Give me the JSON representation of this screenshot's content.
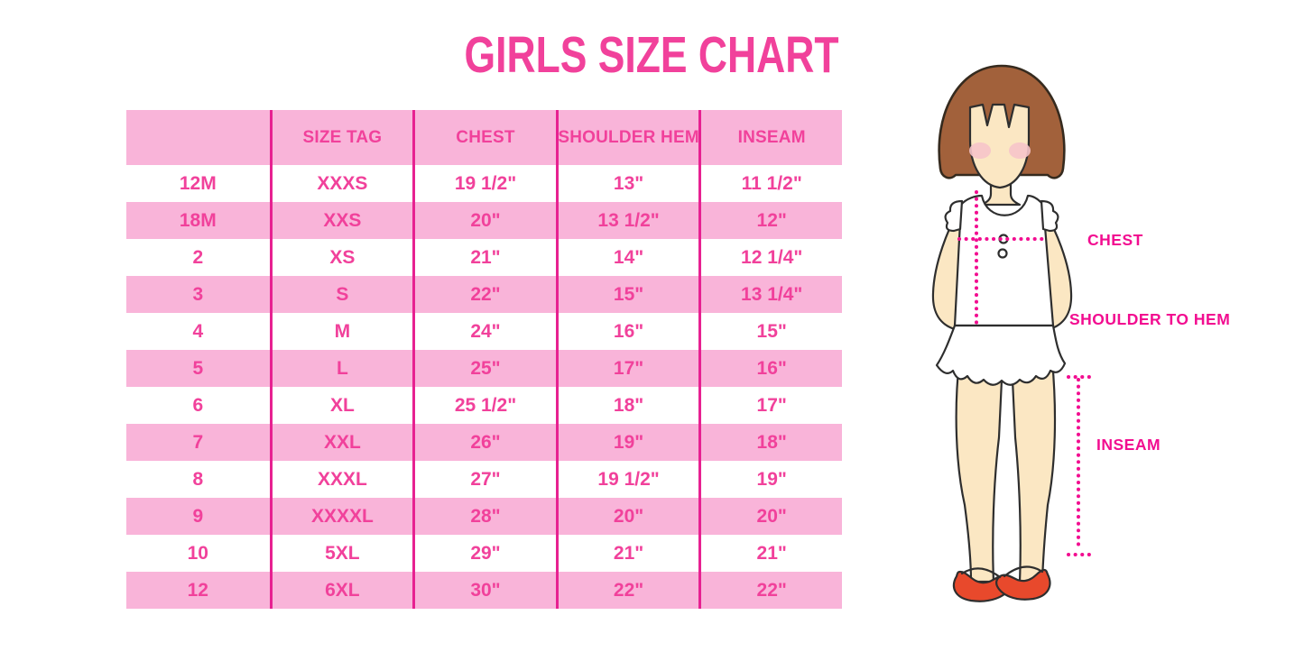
{
  "title": "GIRLS SIZE CHART",
  "chart_data": {
    "type": "table",
    "title": "GIRLS SIZE CHART",
    "columns": [
      "",
      "SIZE TAG",
      "CHEST",
      "SHOULDER HEM",
      "INSEAM"
    ],
    "rows": [
      [
        "12M",
        "XXXS",
        "19 1/2\"",
        "13\"",
        "11 1/2\""
      ],
      [
        "18M",
        "XXS",
        "20\"",
        "13 1/2\"",
        "12\""
      ],
      [
        "2",
        "XS",
        "21\"",
        "14\"",
        "12 1/4\""
      ],
      [
        "3",
        "S",
        "22\"",
        "15\"",
        "13 1/4\""
      ],
      [
        "4",
        "M",
        "24\"",
        "16\"",
        "15\""
      ],
      [
        "5",
        "L",
        "25\"",
        "17\"",
        "16\""
      ],
      [
        "6",
        "XL",
        "25 1/2\"",
        "18\"",
        "17\""
      ],
      [
        "7",
        "XXL",
        "26\"",
        "19\"",
        "18\""
      ],
      [
        "8",
        "XXXL",
        "27\"",
        "19 1/2\"",
        "19\""
      ],
      [
        "9",
        "XXXXL",
        "28\"",
        "20\"",
        "20\""
      ],
      [
        "10",
        "5XL",
        "29\"",
        "21\"",
        "21\""
      ],
      [
        "12",
        "6XL",
        "30\"",
        "22\"",
        "22\""
      ]
    ],
    "row_striping": "alternating white and pink, header pink",
    "legend_position": "none",
    "grid": "vertical dividers only"
  },
  "diagram": {
    "chest_label": "CHEST",
    "shoulder_to_hem_label": "SHOULDER TO HEM",
    "inseam_label": "INSEAM"
  },
  "colors": {
    "title_pink": "#F1419B",
    "row_pink": "#F9B4D9",
    "divider_pink": "#E72191",
    "cell_pink": "#F1419B",
    "label_magenta": "#F20D90",
    "hair_brown": "#A2613B",
    "skin": "#FBE7C3",
    "blush": "#F6C4CA",
    "shoe_red": "#E8492C"
  }
}
